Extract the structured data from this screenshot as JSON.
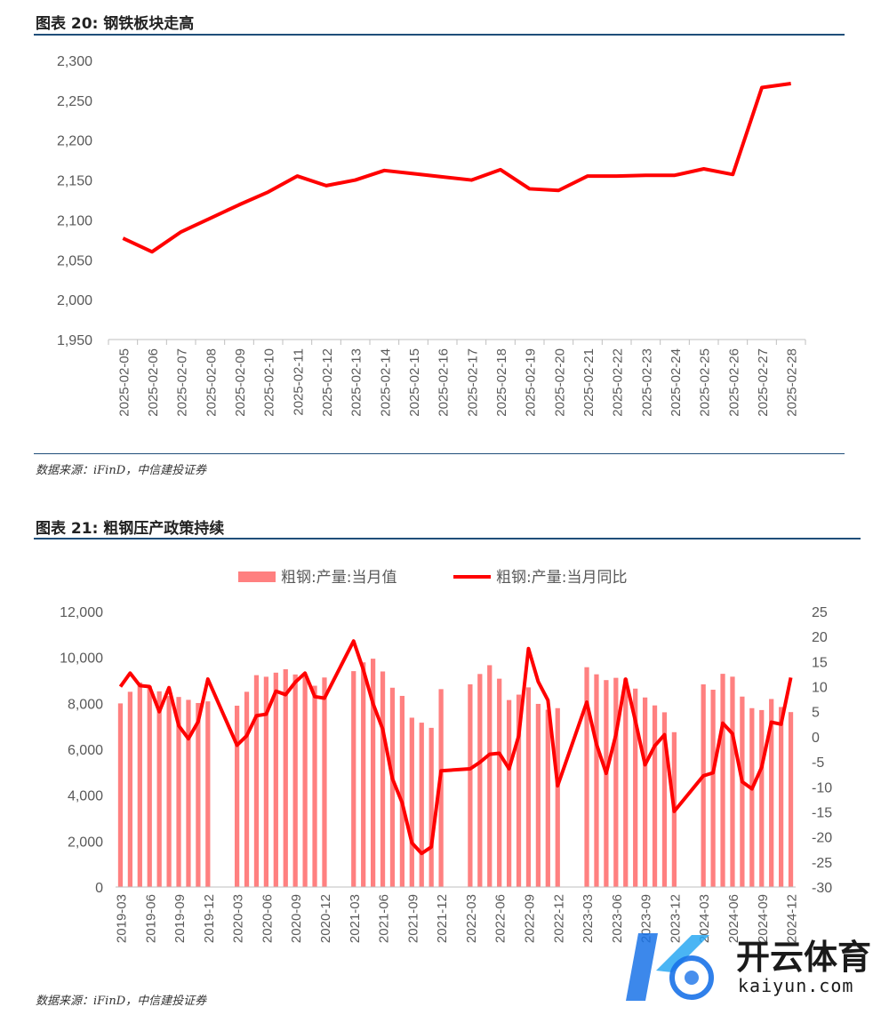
{
  "figure1": {
    "title": "图表 20: 钢铁板块走高",
    "source": "数据来源：iFinD，中信建投证券"
  },
  "figure2": {
    "title": "图表 21: 粗钢压产政策持续",
    "source": "数据来源：iFinD，中信建投证券"
  },
  "watermark": {
    "brand": "开云体育",
    "domain": "kaiyun.com"
  },
  "colors": {
    "line": "#ff0000",
    "bar": "#ff8080",
    "rule": "#1f4e79",
    "axis": "#bfbfbf"
  },
  "chart_data": [
    {
      "type": "line",
      "title": "图表 20: 钢铁板块走高",
      "series": [
        {
          "name": "钢铁板块",
          "values": [
            2077,
            2060,
            2085,
            2102,
            2119,
            2135,
            2155,
            2143,
            2150,
            2162,
            2158,
            2154,
            2150,
            2163,
            2139,
            2137,
            2155,
            2155,
            2156,
            2156,
            2164,
            2157,
            2266,
            2271
          ]
        }
      ],
      "x": [
        "2025-02-05",
        "2025-02-06",
        "2025-02-07",
        "2025-02-08",
        "2025-02-09",
        "2025-02-10",
        "2025-02-11",
        "2025-02-12",
        "2025-02-13",
        "2025-02-14",
        "2025-02-15",
        "2025-02-16",
        "2025-02-17",
        "2025-02-18",
        "2025-02-19",
        "2025-02-20",
        "2025-02-21",
        "2025-02-22",
        "2025-02-23",
        "2025-02-24",
        "2025-02-25",
        "2025-02-26",
        "2025-02-27",
        "2025-02-28"
      ],
      "ylim": [
        1950,
        2300
      ],
      "yticks": [
        "2,300",
        "2,250",
        "2,200",
        "2,150",
        "2,100",
        "2,050",
        "2,000",
        "1,950"
      ],
      "ytick_values": [
        2300,
        2250,
        2200,
        2150,
        2100,
        2050,
        2000,
        1950
      ]
    },
    {
      "type": "bar",
      "title": "图表 21: 粗钢压产政策持续",
      "legend": [
        "粗钢:产量:当月值",
        "粗钢:产量:当月同比"
      ],
      "months": [
        "2019-03",
        "2019-04",
        "2019-05",
        "2019-06",
        "2019-07",
        "2019-08",
        "2019-09",
        "2019-10",
        "2019-11",
        "2019-12",
        "2020-01",
        "2020-02",
        "2020-03",
        "2020-04",
        "2020-05",
        "2020-06",
        "2020-07",
        "2020-08",
        "2020-09",
        "2020-10",
        "2020-11",
        "2020-12",
        "2021-01",
        "2021-02",
        "2021-03",
        "2021-04",
        "2021-05",
        "2021-06",
        "2021-07",
        "2021-08",
        "2021-09",
        "2021-10",
        "2021-11",
        "2021-12",
        "2022-01",
        "2022-02",
        "2022-03",
        "2022-04",
        "2022-05",
        "2022-06",
        "2022-07",
        "2022-08",
        "2022-09",
        "2022-10",
        "2022-11",
        "2022-12",
        "2023-01",
        "2023-02",
        "2023-03",
        "2023-04",
        "2023-05",
        "2023-06",
        "2023-07",
        "2023-08",
        "2023-09",
        "2023-10",
        "2023-11",
        "2023-12",
        "2024-01",
        "2024-02",
        "2024-03",
        "2024-04",
        "2024-05",
        "2024-06",
        "2024-07",
        "2024-08",
        "2024-09",
        "2024-10",
        "2024-11",
        "2024-12"
      ],
      "x_tick_labels": [
        "2019-03",
        "2019-06",
        "2019-09",
        "2019-12",
        "2020-03",
        "2020-06",
        "2020-09",
        "2020-12",
        "2021-03",
        "2021-06",
        "2021-09",
        "2021-12",
        "2022-03",
        "2022-06",
        "2022-09",
        "2022-12",
        "2023-03",
        "2023-06",
        "2023-09",
        "2023-12",
        "2024-03",
        "2024-06",
        "2024-09",
        "2024-12"
      ],
      "series": [
        {
          "name": "粗钢:产量:当月值",
          "axis": "left",
          "values": [
            7997,
            8503,
            8909,
            8753,
            8523,
            8320,
            8277,
            8152,
            8014,
            8085,
            null,
            null,
            7897,
            8503,
            9227,
            9158,
            9336,
            9485,
            9257,
            9220,
            8766,
            9125,
            null,
            null,
            9402,
            9785,
            9945,
            9388,
            8679,
            8324,
            7375,
            7158,
            6933,
            8618,
            null,
            null,
            8830,
            9278,
            9661,
            9073,
            8143,
            8379,
            8695,
            7976,
            7721,
            7790,
            null,
            null,
            9573,
            9264,
            9012,
            9111,
            9080,
            8641,
            8255,
            7909,
            7610,
            6744,
            null,
            null,
            8827,
            8593,
            9286,
            9161,
            8294,
            7790,
            7707,
            8188,
            7840,
            7619
          ]
        },
        {
          "name": "粗钢:产量:当月同比",
          "axis": "right",
          "values": [
            10.0,
            12.7,
            10.2,
            10.0,
            5.0,
            9.8,
            2.2,
            -0.4,
            3.0,
            11.5,
            null,
            null,
            -1.7,
            0.2,
            4.2,
            4.5,
            9.1,
            8.4,
            10.9,
            12.7,
            8.0,
            7.7,
            null,
            null,
            19.1,
            13.4,
            6.6,
            1.5,
            -8.4,
            -13.2,
            -21.2,
            -23.3,
            -22.0,
            -6.8,
            null,
            null,
            -6.4,
            -5.1,
            -3.5,
            -3.3,
            -6.4,
            0.2,
            17.6,
            11.0,
            7.3,
            -9.8,
            null,
            null,
            6.9,
            -1.5,
            -7.3,
            0.4,
            11.5,
            3.2,
            -5.6,
            -1.8,
            0.4,
            -14.9,
            null,
            null,
            -7.8,
            -7.2,
            2.7,
            0.6,
            -9.0,
            -10.4,
            -6.1,
            2.9,
            2.5,
            11.8
          ]
        }
      ],
      "ylim_left": [
        0,
        12000
      ],
      "ylim_right": [
        -30,
        25
      ],
      "yticks_left": [
        "12,000",
        "10,000",
        "8,000",
        "6,000",
        "4,000",
        "2,000",
        "0"
      ],
      "yticks_left_values": [
        12000,
        10000,
        8000,
        6000,
        4000,
        2000,
        0
      ],
      "yticks_right": [
        "25",
        "20",
        "15",
        "10",
        "5",
        "0",
        "-5",
        "-10",
        "-15",
        "-20",
        "-25",
        "-30"
      ],
      "yticks_right_values": [
        25,
        20,
        15,
        10,
        5,
        0,
        -5,
        -10,
        -15,
        -20,
        -25,
        -30
      ]
    }
  ]
}
